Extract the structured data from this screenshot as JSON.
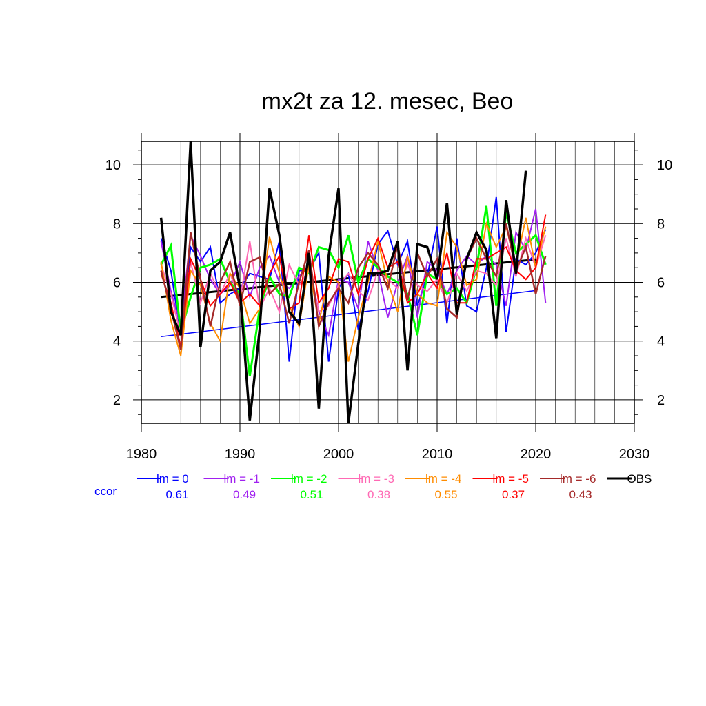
{
  "chart_data": {
    "type": "line",
    "title": "mx2t za 12. mesec, Beo",
    "xlabel": "",
    "ylabel": "",
    "xlim": [
      1980,
      2030
    ],
    "ylim": [
      1.2,
      10.8
    ],
    "x_ticks": [
      1980,
      1990,
      2000,
      2010,
      2020,
      2030
    ],
    "y_ticks": [
      2,
      4,
      6,
      8,
      10
    ],
    "grid": true,
    "legend_position": "bottom",
    "ccor_label": "ccor",
    "x": [
      1982,
      1983,
      1984,
      1985,
      1986,
      1987,
      1988,
      1989,
      1990,
      1991,
      1992,
      1993,
      1994,
      1995,
      1996,
      1997,
      1998,
      1999,
      2000,
      2001,
      2002,
      2003,
      2004,
      2005,
      2006,
      2007,
      2008,
      2009,
      2010,
      2011,
      2012,
      2013,
      2014,
      2015,
      2016,
      2017,
      2018,
      2019,
      2020,
      2021
    ],
    "series": [
      {
        "name": "lm = 0",
        "color": "#0000ff",
        "width": 2,
        "ccor": "0.61",
        "values": [
          7.5,
          6.4,
          4.2,
          7.2,
          6.7,
          7.2,
          5.3,
          5.6,
          5.8,
          6.3,
          6.2,
          6.1,
          7.4,
          3.3,
          6.4,
          6.4,
          7.0,
          3.3,
          5.8,
          6.3,
          4.4,
          5.7,
          7.3,
          7.75,
          6.6,
          7.4,
          5.2,
          6.2,
          7.9,
          4.6,
          7.5,
          5.2,
          5.0,
          6.5,
          8.9,
          4.3,
          6.8,
          6.6,
          7.0,
          7.8
        ],
        "trend": [
          [
            1982,
            4.15
          ],
          [
            2020,
            5.72
          ]
        ],
        "trend_color": "#0000ff",
        "trend_width": 1.5
      },
      {
        "name": "lm = -1",
        "color": "#a020f0",
        "width": 2,
        "ccor": "0.49",
        "values": [
          7.4,
          5.7,
          4.5,
          7.6,
          6.9,
          6.1,
          5.6,
          5.9,
          6.7,
          5.5,
          6.5,
          6.9,
          6.0,
          5.8,
          6.2,
          6.6,
          5.0,
          4.2,
          6.1,
          6.0,
          5.1,
          7.4,
          6.4,
          4.8,
          6.0,
          6.9,
          4.8,
          6.7,
          6.4,
          5.6,
          6.4,
          6.9,
          6.6,
          6.9,
          6.6,
          5.2,
          7.7,
          7.1,
          8.5,
          5.3
        ],
        "trend": null
      },
      {
        "name": "lm = -2",
        "color": "#00ff00",
        "width": 3,
        "ccor": "0.51",
        "values": [
          6.6,
          7.25,
          4.3,
          5.5,
          6.5,
          6.6,
          6.8,
          6.0,
          5.6,
          2.8,
          5.1,
          6.2,
          5.6,
          5.5,
          6.5,
          6.3,
          7.2,
          7.1,
          6.5,
          7.6,
          6.0,
          6.8,
          6.5,
          6.2,
          6.0,
          5.6,
          4.2,
          6.3,
          6.1,
          5.6,
          5.8,
          5.3,
          6.5,
          8.6,
          5.2,
          8.4,
          7.0,
          7.3,
          7.6,
          6.6
        ],
        "trend": null
      },
      {
        "name": "lm = -3",
        "color": "#ff69b4",
        "width": 2,
        "ccor": "0.38",
        "values": [
          6.6,
          5.6,
          4.2,
          6.7,
          5.3,
          6.3,
          5.6,
          6.3,
          5.4,
          7.4,
          5.1,
          5.8,
          5.0,
          6.6,
          5.9,
          6.4,
          5.0,
          5.2,
          5.9,
          6.3,
          5.7,
          5.4,
          6.4,
          6.1,
          5.8,
          6.6,
          5.9,
          5.7,
          6.1,
          5.3,
          6.3,
          5.7,
          6.4,
          6.3,
          5.9,
          7.5,
          6.2,
          7.5,
          6.5,
          7.6
        ],
        "trend": null
      },
      {
        "name": "lm = -4",
        "color": "#ff8c00",
        "width": 2,
        "ccor": "0.55",
        "values": [
          6.7,
          4.7,
          3.5,
          6.4,
          5.9,
          4.6,
          4.0,
          6.3,
          5.8,
          4.6,
          5.1,
          7.55,
          6.3,
          5.2,
          4.5,
          6.6,
          4.6,
          6.2,
          6.0,
          3.3,
          4.8,
          6.0,
          7.4,
          6.0,
          5.0,
          6.9,
          5.6,
          5.3,
          5.2,
          7.7,
          7.2,
          5.9,
          6.1,
          8.0,
          7.2,
          7.9,
          6.6,
          8.2,
          6.5,
          7.9
        ],
        "trend": null
      },
      {
        "name": "lm = -5",
        "color": "#ff0000",
        "width": 2,
        "ccor": "0.37",
        "values": [
          6.3,
          5.3,
          3.8,
          6.8,
          6.1,
          5.2,
          5.6,
          6.0,
          5.3,
          5.6,
          5.2,
          6.3,
          6.9,
          5.1,
          5.3,
          7.6,
          5.3,
          5.8,
          6.8,
          6.7,
          5.6,
          6.8,
          7.5,
          6.5,
          6.7,
          5.3,
          5.6,
          6.3,
          5.8,
          7.0,
          5.3,
          5.3,
          6.8,
          6.8,
          7.0,
          7.2,
          6.4,
          6.1,
          6.5,
          8.3
        ],
        "trend": null
      },
      {
        "name": "lm = -6",
        "color": "#a52a2a",
        "width": 2.5,
        "ccor": "0.43",
        "values": [
          6.4,
          5.1,
          3.7,
          7.7,
          6.1,
          4.5,
          6.0,
          6.7,
          5.2,
          6.7,
          6.85,
          5.6,
          5.95,
          4.6,
          6.0,
          7.1,
          4.5,
          5.3,
          5.8,
          5.3,
          6.5,
          7.0,
          6.6,
          5.8,
          7.3,
          5.4,
          7.0,
          6.2,
          6.8,
          5.1,
          4.8,
          6.8,
          7.5,
          6.8,
          6.2,
          8.0,
          6.4,
          7.2,
          5.6,
          6.9
        ],
        "trend": null
      },
      {
        "name": "OBS",
        "color": "#000000",
        "width": 3.5,
        "ccor": "",
        "values": [
          8.2,
          5.0,
          4.2,
          10.8,
          3.8,
          6.4,
          6.7,
          7.7,
          5.8,
          1.3,
          4.4,
          9.2,
          7.6,
          5.0,
          4.6,
          7.0,
          1.7,
          6.9,
          9.2,
          1.2,
          3.9,
          6.3,
          6.3,
          6.4,
          7.4,
          3.0,
          7.3,
          7.2,
          6.1,
          8.7,
          4.9,
          6.8,
          7.7,
          7.1,
          4.1,
          8.8,
          6.3,
          9.8,
          null,
          null
        ],
        "trend": [
          [
            1982,
            5.5
          ],
          [
            2020,
            6.78
          ]
        ],
        "trend_color": "#000000",
        "trend_width": 3
      }
    ]
  }
}
